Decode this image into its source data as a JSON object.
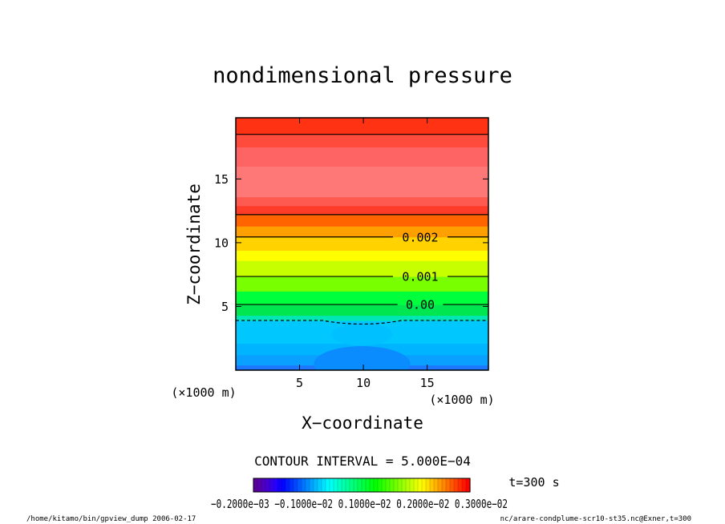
{
  "chart_data": {
    "type": "heatmap",
    "title": "nondimensional pressure",
    "xlabel": "X−coordinate",
    "ylabel": "Z−coordinate",
    "x_unit": "(×1000 m)",
    "y_unit": "(×1000 m)",
    "x_ticks": [
      "5",
      "10",
      "15"
    ],
    "y_ticks": [
      "5",
      "10",
      "15"
    ],
    "xlim": [
      0,
      19.8
    ],
    "ylim": [
      0,
      19.8
    ],
    "contour_interval_text": "CONTOUR INTERVAL = 5.000E−04",
    "time_text": "t=300 s",
    "contours": [
      {
        "label": "0.002",
        "value": 0.002,
        "z": 10.45,
        "style": "solid"
      },
      {
        "label": "0.001",
        "value": 0.001,
        "z": 7.35,
        "style": "solid"
      },
      {
        "label": "0.00",
        "value": 0.0,
        "z": 5.15,
        "style": "solid"
      },
      {
        "label": "",
        "value": -0.0005,
        "z": 3.9,
        "style": "dashed"
      },
      {
        "label": "",
        "value": 0.0025,
        "z": 12.2,
        "style": "solid"
      },
      {
        "label": "",
        "value": 0.003,
        "z": 18.5,
        "style": "solid"
      }
    ],
    "colorbar_tick_text": "−0.2000e−03  −0.1000e−02  0.1000e−02  0.2000e−02  0.3000e−02",
    "colorbar_range": [
      -0.002,
      0.0035
    ],
    "bands": [
      {
        "z0": 0.0,
        "z1": 0.4,
        "color": "#1e78ff"
      },
      {
        "z0": 0.4,
        "z1": 1.2,
        "color": "#0aa0ff"
      },
      {
        "z0": 1.2,
        "z1": 2.1,
        "color": "#00b4ff"
      },
      {
        "z0": 2.1,
        "z1": 3.9,
        "color": "#00c8ff"
      },
      {
        "z0": 3.9,
        "z1": 4.3,
        "color": "#00e6b4"
      },
      {
        "z0": 4.3,
        "z1": 5.15,
        "color": "#00e650"
      },
      {
        "z0": 5.15,
        "z1": 6.2,
        "color": "#00ff3c"
      },
      {
        "z0": 6.2,
        "z1": 7.35,
        "color": "#78ff00"
      },
      {
        "z0": 7.35,
        "z1": 8.6,
        "color": "#c8ff00"
      },
      {
        "z0": 8.6,
        "z1": 9.4,
        "color": "#ffff00"
      },
      {
        "z0": 9.4,
        "z1": 10.45,
        "color": "#ffd200"
      },
      {
        "z0": 10.45,
        "z1": 11.3,
        "color": "#ffa000"
      },
      {
        "z0": 11.3,
        "z1": 12.2,
        "color": "#ff6400"
      },
      {
        "z0": 12.2,
        "z1": 12.9,
        "color": "#ff3c28"
      },
      {
        "z0": 12.9,
        "z1": 13.6,
        "color": "#ff5a50"
      },
      {
        "z0": 13.6,
        "z1": 16.0,
        "color": "#ff7878"
      },
      {
        "z0": 16.0,
        "z1": 17.5,
        "color": "#ff6464"
      },
      {
        "z0": 17.5,
        "z1": 18.5,
        "color": "#ff4b3c"
      },
      {
        "z0": 18.5,
        "z1": 19.8,
        "color": "#ff3214"
      }
    ]
  },
  "footer": {
    "left": "/home/kitamo/bin/gpview_dump  2006-02-17",
    "right": "nc/arare-condplume-scr10-st35.nc@Exner,t=300"
  }
}
